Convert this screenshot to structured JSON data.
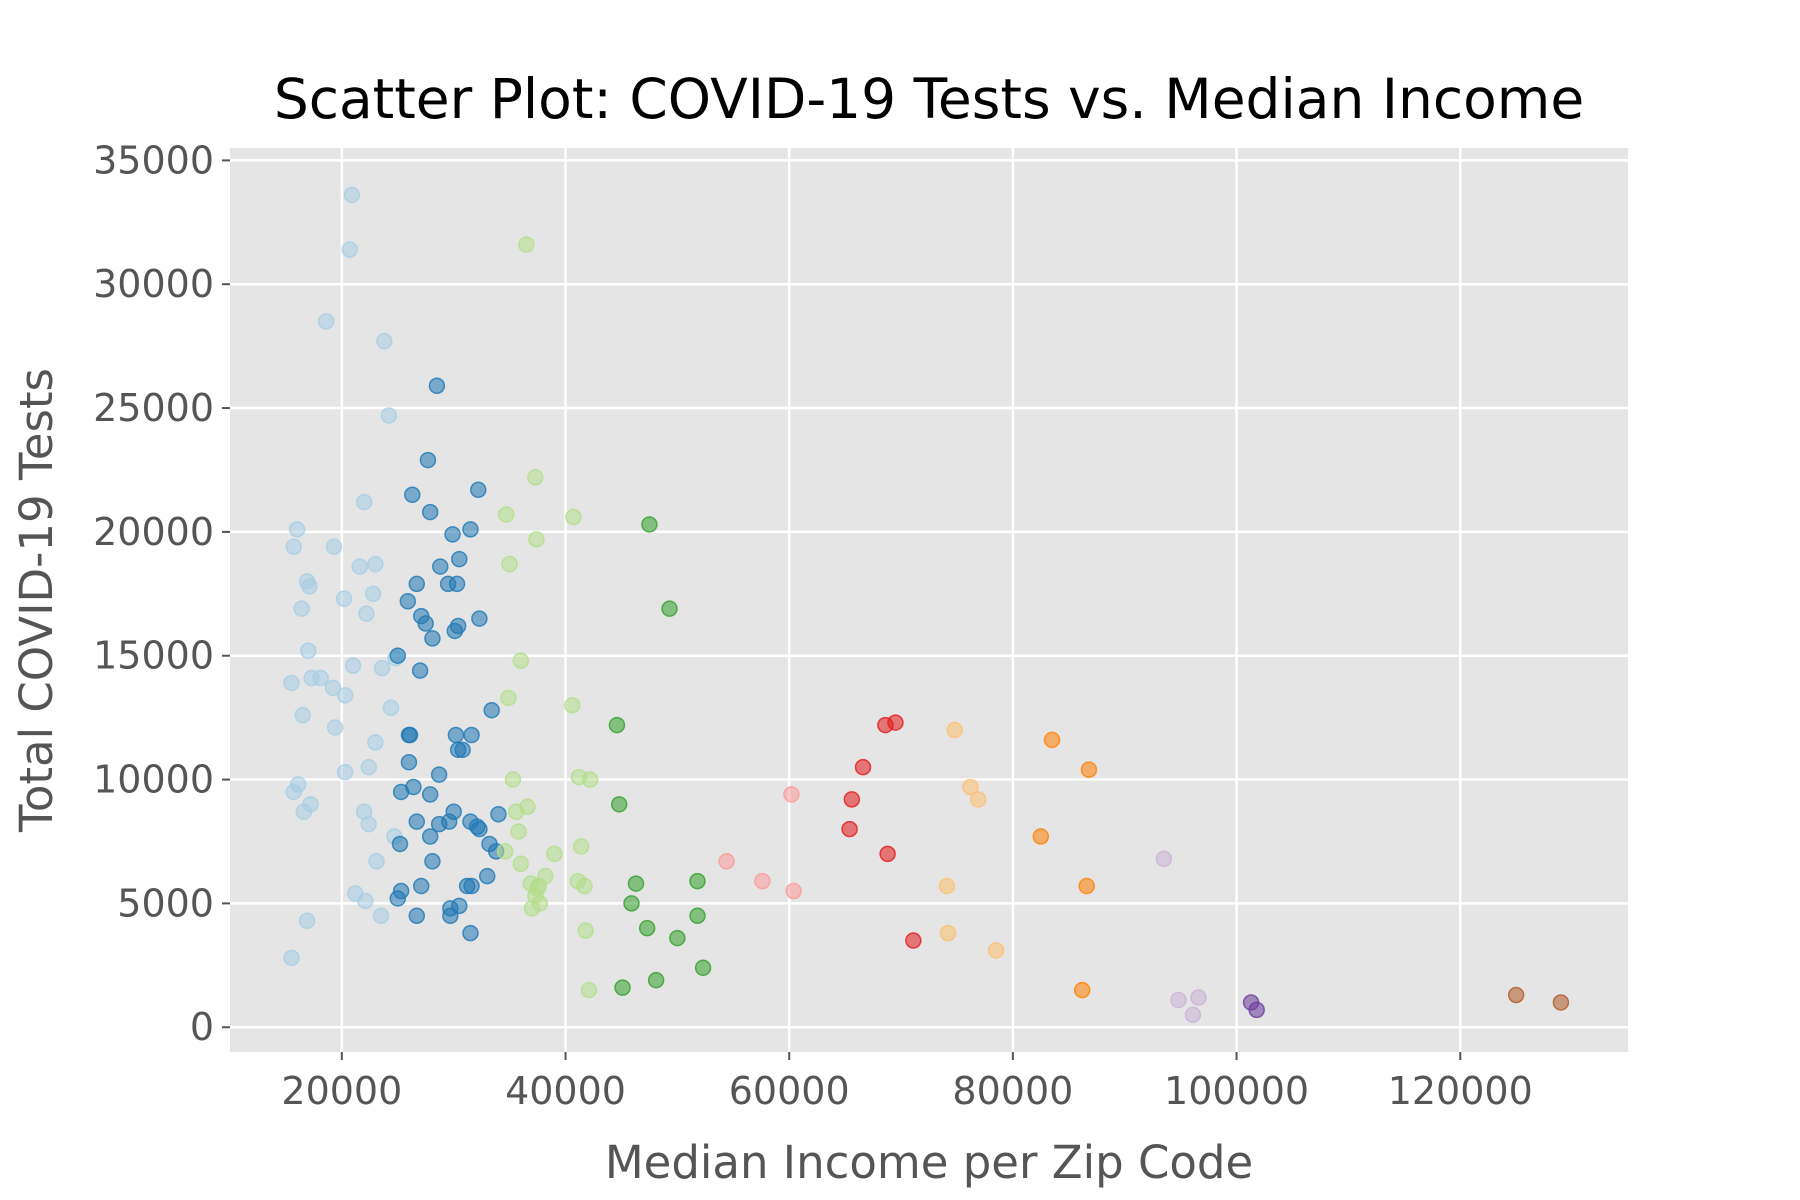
{
  "chart_data": {
    "type": "scatter",
    "title": "Scatter Plot: COVID-19 Tests vs. Median Income",
    "xlabel": "Median Income per Zip Code",
    "ylabel": "Total COVID-19 Tests",
    "xlim": [
      10000,
      135000
    ],
    "ylim": [
      -1000,
      35500
    ],
    "xticks": [
      20000,
      40000,
      60000,
      80000,
      100000,
      120000
    ],
    "xtick_labels": [
      "20000",
      "40000",
      "60000",
      "80000",
      "100000",
      "120000"
    ],
    "yticks": [
      0,
      5000,
      10000,
      15000,
      20000,
      25000,
      30000,
      35000
    ],
    "ytick_labels": [
      "0",
      "5000",
      "10000",
      "15000",
      "20000",
      "25000",
      "30000",
      "35000"
    ],
    "grid": true,
    "legend": "none",
    "style": {
      "plot_background": "#e5e5e5",
      "grid_color": "#ffffff",
      "point_alpha": 0.55
    },
    "series": [
      {
        "color": "#a6cee3",
        "x": [
          20900,
          20700,
          18600,
          23800,
          24200,
          22000,
          16000,
          15700,
          19300,
          23000,
          21600,
          16900,
          17100,
          20200,
          22800,
          16400,
          22200,
          17000,
          15500,
          17300,
          24800,
          21000,
          18100,
          19200,
          20300,
          24400,
          16500,
          19400,
          23000,
          22400,
          16100,
          20300,
          15700,
          17200,
          22000,
          16600,
          24700,
          22400,
          23100,
          21200,
          22100,
          23500,
          16900,
          15500,
          23600
        ],
        "y": [
          33600,
          31400,
          28500,
          27700,
          24700,
          21200,
          20100,
          19400,
          19400,
          18700,
          18600,
          18000,
          17800,
          17300,
          17500,
          16900,
          16700,
          15200,
          13900,
          14100,
          14900,
          14600,
          14100,
          13700,
          13400,
          12900,
          12600,
          12100,
          11500,
          10500,
          9800,
          10300,
          9500,
          9000,
          8700,
          8700,
          7700,
          8200,
          6700,
          5400,
          5100,
          4500,
          4300,
          2800,
          14500
        ]
      },
      {
        "color": "#1f78b4",
        "x": [
          28500,
          27700,
          32200,
          26300,
          27900,
          31500,
          29900,
          30500,
          28800,
          26700,
          29500,
          30300,
          32300,
          25900,
          27100,
          27500,
          30100,
          30400,
          28100,
          25000,
          33400,
          27000,
          26000,
          26100,
          30200,
          31600,
          30400,
          30800,
          26000,
          30000,
          26400,
          28700,
          25300,
          27900,
          34000,
          26700,
          29600,
          28700,
          31500,
          32300,
          27900,
          33200,
          25200,
          32100,
          28100,
          33800,
          33000,
          31600,
          27100,
          31200,
          25300,
          25000,
          29700,
          30500,
          29700,
          31500,
          26700
        ],
        "y": [
          25900,
          22900,
          21700,
          21500,
          20800,
          20100,
          19900,
          18900,
          18600,
          17900,
          17900,
          17900,
          16500,
          17200,
          16600,
          16300,
          16000,
          16200,
          15700,
          15000,
          12800,
          14400,
          11800,
          11800,
          11800,
          11800,
          11200,
          11200,
          10700,
          8700,
          9700,
          10200,
          9500,
          9400,
          8600,
          8300,
          8300,
          8200,
          8300,
          8000,
          7700,
          7400,
          7400,
          8100,
          6700,
          7100,
          6100,
          5700,
          5700,
          5700,
          5500,
          5200,
          4800,
          4900,
          4500,
          3800,
          4500
        ]
      },
      {
        "color": "#b2df8a",
        "x": [
          36500,
          37300,
          34700,
          40700,
          37400,
          35000,
          36000,
          34900,
          40600,
          42200,
          41200,
          35300,
          36600,
          35600,
          35800,
          41400,
          34600,
          39000,
          36000,
          38200,
          41100,
          36900,
          41700,
          37600,
          37500,
          37300,
          37700,
          37000,
          41800,
          42100
        ],
        "y": [
          31600,
          22200,
          20700,
          20600,
          19700,
          18700,
          14800,
          13300,
          13000,
          10000,
          10100,
          10000,
          8900,
          8700,
          7900,
          7300,
          7100,
          7000,
          6600,
          6100,
          5900,
          5800,
          5700,
          5700,
          5600,
          5300,
          5000,
          4800,
          3900,
          1500
        ]
      },
      {
        "color": "#33a02c",
        "x": [
          47500,
          49300,
          44600,
          44800,
          46300,
          51800,
          45900,
          51800,
          47300,
          50000,
          52300,
          48100,
          45100
        ],
        "y": [
          20300,
          16900,
          12200,
          9000,
          5800,
          5900,
          5000,
          4500,
          4000,
          3600,
          2400,
          1900,
          1600
        ]
      },
      {
        "color": "#fb9a99",
        "x": [
          60200,
          54400,
          57600,
          60400
        ],
        "y": [
          9400,
          6700,
          5900,
          5500
        ]
      },
      {
        "color": "#e31a1c",
        "x": [
          69500,
          68600,
          66600,
          65600,
          65400,
          68800,
          71100
        ],
        "y": [
          12300,
          12200,
          10500,
          9200,
          8000,
          7000,
          3500
        ]
      },
      {
        "color": "#fdbf6f",
        "x": [
          74800,
          76200,
          76900,
          74100,
          74200,
          78500
        ],
        "y": [
          12000,
          9700,
          9200,
          5700,
          3800,
          3100
        ]
      },
      {
        "color": "#ff7f00",
        "x": [
          83500,
          86800,
          82500,
          86600,
          86200
        ],
        "y": [
          11600,
          10400,
          7700,
          5700,
          1500
        ]
      },
      {
        "color": "#cab2d6",
        "x": [
          93500,
          94800,
          96600,
          96100
        ],
        "y": [
          6800,
          1100,
          1200,
          500
        ]
      },
      {
        "color": "#6a3d9a",
        "x": [
          101300,
          101800
        ],
        "y": [
          1000,
          700
        ]
      },
      {
        "color": "#b15928",
        "x": [
          125000,
          129000
        ],
        "y": [
          1300,
          1000
        ]
      }
    ]
  }
}
